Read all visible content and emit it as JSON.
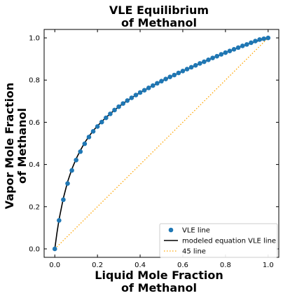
{
  "chart_data": {
    "type": "scatter",
    "title_lines": [
      "VLE Equilibrium",
      "of Methanol"
    ],
    "xlabel_lines": [
      "Liquid Mole Fraction",
      "of Methanol"
    ],
    "ylabel_lines": [
      "Vapor Mole Fraction",
      "of Methanol"
    ],
    "xlim": [
      -0.05,
      1.05
    ],
    "ylim": [
      -0.04,
      1.04
    ],
    "xticks": [
      0.0,
      0.2,
      0.4,
      0.6,
      0.8,
      1.0
    ],
    "yticks": [
      0.0,
      0.2,
      0.4,
      0.6,
      0.8,
      1.0
    ],
    "xtick_labels": [
      "0.0",
      "0.2",
      "0.4",
      "0.6",
      "0.8",
      "1.0"
    ],
    "ytick_labels": [
      "0.0",
      "0.2",
      "0.4",
      "0.6",
      "0.8",
      "1.0"
    ],
    "grid": false,
    "legend_position": "bottom-right",
    "series": [
      {
        "name": "VLE line",
        "kind": "scatter",
        "color": "#1f77b4",
        "x": [
          0.0,
          0.02,
          0.04,
          0.06,
          0.08,
          0.1,
          0.12,
          0.14,
          0.16,
          0.18,
          0.2,
          0.22,
          0.24,
          0.26,
          0.28,
          0.3,
          0.32,
          0.34,
          0.36,
          0.38,
          0.4,
          0.42,
          0.44,
          0.46,
          0.48,
          0.5,
          0.52,
          0.54,
          0.56,
          0.58,
          0.6,
          0.62,
          0.64,
          0.66,
          0.68,
          0.7,
          0.72,
          0.74,
          0.76,
          0.78,
          0.8,
          0.82,
          0.84,
          0.86,
          0.88,
          0.9,
          0.92,
          0.94,
          0.96,
          0.98,
          1.0
        ],
        "y": [
          0.0,
          0.135,
          0.233,
          0.31,
          0.372,
          0.421,
          0.461,
          0.498,
          0.53,
          0.557,
          0.58,
          0.601,
          0.621,
          0.64,
          0.658,
          0.674,
          0.689,
          0.703,
          0.716,
          0.729,
          0.741,
          0.752,
          0.763,
          0.774,
          0.785,
          0.795,
          0.805,
          0.815,
          0.824,
          0.834,
          0.843,
          0.852,
          0.861,
          0.87,
          0.879,
          0.887,
          0.896,
          0.905,
          0.913,
          0.922,
          0.93,
          0.938,
          0.946,
          0.954,
          0.962,
          0.969,
          0.977,
          0.985,
          0.992,
          0.996,
          1.0
        ]
      },
      {
        "name": "modeled equation VLE line",
        "kind": "line",
        "color": "#000000",
        "x": [
          0.0,
          0.01,
          0.02,
          0.04,
          0.06,
          0.08,
          0.1,
          0.12,
          0.14,
          0.16,
          0.18,
          0.2,
          0.24,
          0.28,
          0.32,
          0.36,
          0.4,
          0.45,
          0.5,
          0.55,
          0.6,
          0.65,
          0.7,
          0.75,
          0.8,
          0.85,
          0.9,
          0.95,
          1.0
        ],
        "y": [
          0.0,
          0.075,
          0.14,
          0.24,
          0.318,
          0.378,
          0.427,
          0.467,
          0.503,
          0.533,
          0.56,
          0.583,
          0.623,
          0.658,
          0.689,
          0.716,
          0.741,
          0.769,
          0.795,
          0.819,
          0.843,
          0.865,
          0.887,
          0.909,
          0.93,
          0.95,
          0.969,
          0.985,
          1.0
        ]
      },
      {
        "name": "45 line",
        "kind": "line",
        "dashed": true,
        "color": "#ffa500",
        "x": [
          0.0,
          1.0
        ],
        "y": [
          0.0,
          1.0
        ]
      }
    ]
  }
}
